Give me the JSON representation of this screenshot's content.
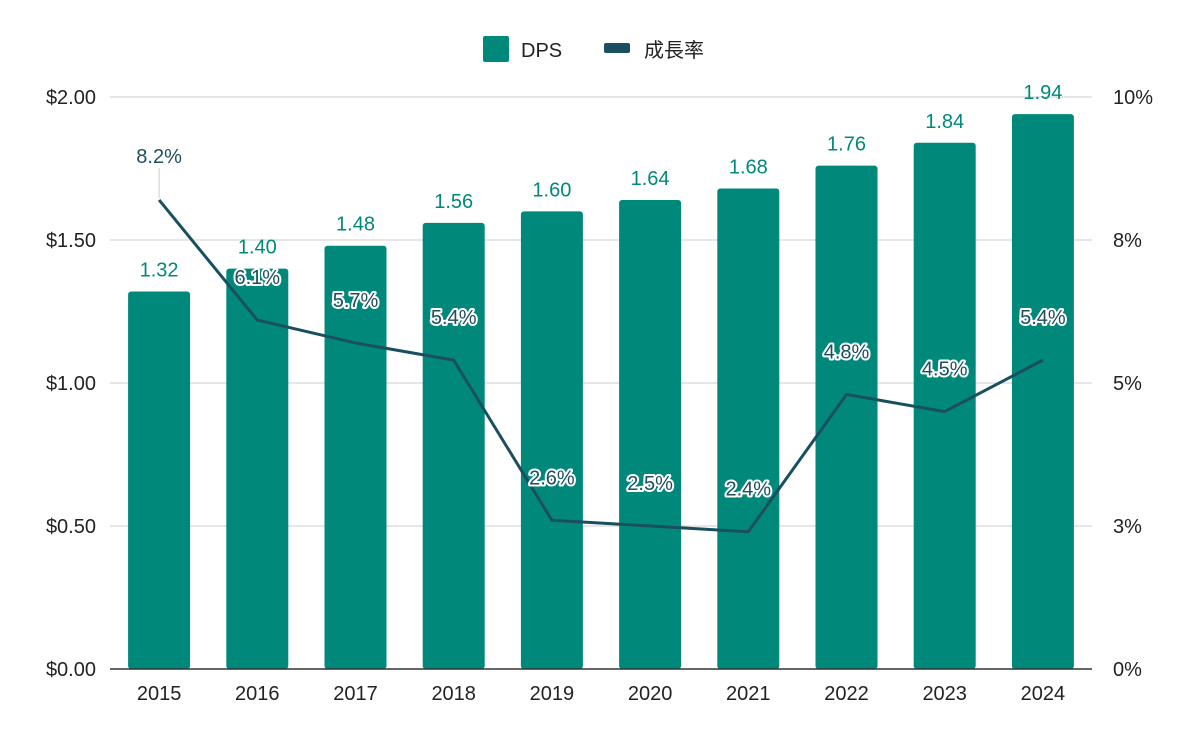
{
  "colors": {
    "bar": "#00897b",
    "line": "#1a4f5f",
    "grid": "#cccccc",
    "axis": "#333333",
    "text": "#222222"
  },
  "legend": {
    "bar_label": "DPS",
    "line_label": "成長率"
  },
  "chart_data": {
    "type": "bar",
    "categories": [
      "2015",
      "2016",
      "2017",
      "2018",
      "2019",
      "2020",
      "2021",
      "2022",
      "2023",
      "2024"
    ],
    "series": [
      {
        "name": "DPS",
        "type": "bar",
        "axis": "left",
        "values": [
          1.32,
          1.4,
          1.48,
          1.56,
          1.6,
          1.64,
          1.68,
          1.76,
          1.84,
          1.94
        ],
        "labels": [
          "1.32",
          "1.40",
          "1.48",
          "1.56",
          "1.60",
          "1.64",
          "1.68",
          "1.76",
          "1.84",
          "1.94"
        ]
      },
      {
        "name": "成長率",
        "type": "line",
        "axis": "right",
        "values": [
          8.2,
          6.1,
          5.7,
          5.4,
          2.6,
          2.5,
          2.4,
          4.8,
          4.5,
          5.4
        ],
        "labels": [
          "8.2%",
          "6.1%",
          "5.7%",
          "5.4%",
          "2.6%",
          "2.5%",
          "2.4%",
          "4.8%",
          "4.5%",
          "5.4%"
        ]
      }
    ],
    "y_left": {
      "ylim": [
        0,
        2
      ],
      "ticks": [
        0,
        0.5,
        1.0,
        1.5,
        2.0
      ],
      "tick_labels": [
        "$0.00",
        "$0.50",
        "$1.00",
        "$1.50",
        "$2.00"
      ]
    },
    "y_right": {
      "ylim": [
        0,
        10
      ],
      "ticks": [
        0,
        2.5,
        5,
        7.5,
        10
      ],
      "tick_labels": [
        "0%",
        "3%",
        "5%",
        "8%",
        "10%"
      ]
    },
    "grid": true,
    "legend_position": "top-center"
  }
}
